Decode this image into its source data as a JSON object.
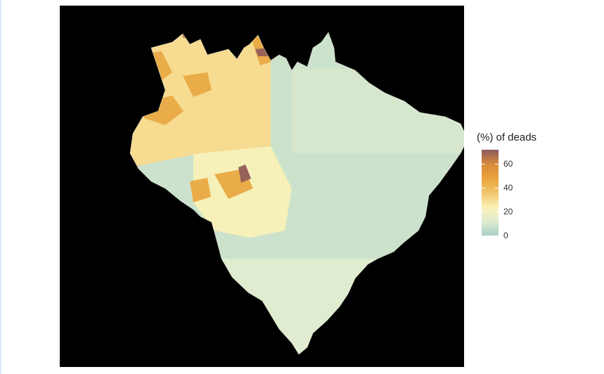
{
  "map": {
    "background": "#000000",
    "scale_min": 0,
    "scale_max": 72,
    "palette": [
      "#a9cfc6",
      "#dfeccf",
      "#fbf1b5",
      "#f1c56b",
      "#e8a33c",
      "#d98a3a",
      "#8a5a5e"
    ],
    "shading_by_region": {
      "north_west": 30,
      "amazon_orange_blocks": 45,
      "north_hotspots": 70,
      "central_hotspot": 70,
      "central_west": 22,
      "north_east": 10,
      "south_east": 8,
      "south": 12
    }
  },
  "legend": {
    "title": "(%) of deads",
    "ticks": [
      "60",
      "40",
      "20",
      "0"
    ],
    "tick_values": [
      60,
      40,
      20,
      0
    ]
  }
}
